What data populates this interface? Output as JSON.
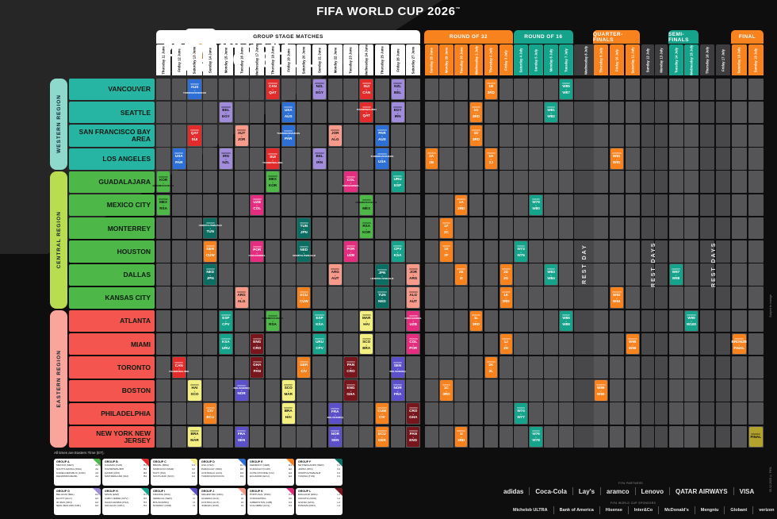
{
  "title": "FIFA WORLD CUP 2026",
  "logo": {
    "numeral": "26",
    "badge_text": "FIFA",
    "line1": "MATCH",
    "line2": "SCHEDULE"
  },
  "stage_colors": {
    "orange": "#f8821e",
    "teal": "#16a38b",
    "white": "#ffffff"
  },
  "stages": {
    "group": {
      "label": "GROUP STAGE MATCHES",
      "bg": "#ffffff",
      "fg": "#111111"
    },
    "r32": {
      "label": "ROUND OF 32",
      "bg": "#f8821e",
      "fg": "#ffffff"
    },
    "r16": {
      "label": "ROUND OF 16",
      "bg": "#16a38b",
      "fg": "#ffffff"
    },
    "qf": {
      "label": "QUARTER-FINALS",
      "bg": "#f8821e",
      "fg": "#ffffff"
    },
    "sf": {
      "label": "SEMI-FINALS",
      "bg": "#16a38b",
      "fg": "#ffffff"
    },
    "final": {
      "label": "FINAL",
      "bg": "#f8821e",
      "fg": "#ffffff"
    },
    "rest": {
      "label": "",
      "bg": "#3d3d3f",
      "fg": "#ffffff"
    }
  },
  "rest_labels": {
    "single": "REST DAY",
    "multi": "REST DAYS"
  },
  "columns": [
    {
      "day": "Thursday",
      "date": "11 June",
      "stage": "group"
    },
    {
      "day": "Friday",
      "date": "12 June",
      "stage": "group"
    },
    {
      "day": "Saturday",
      "date": "13 June",
      "stage": "group"
    },
    {
      "day": "Sunday",
      "date": "14 June",
      "stage": "group"
    },
    {
      "day": "Monday",
      "date": "15 June",
      "stage": "group"
    },
    {
      "day": "Tuesday",
      "date": "16 June",
      "stage": "group"
    },
    {
      "day": "Wednesday",
      "date": "17 June",
      "stage": "group"
    },
    {
      "day": "Thursday",
      "date": "18 June",
      "stage": "group"
    },
    {
      "day": "Friday",
      "date": "19 June",
      "stage": "group"
    },
    {
      "day": "Saturday",
      "date": "20 June",
      "stage": "group"
    },
    {
      "day": "Sunday",
      "date": "21 June",
      "stage": "group"
    },
    {
      "day": "Monday",
      "date": "22 June",
      "stage": "group"
    },
    {
      "day": "Tuesday",
      "date": "23 June",
      "stage": "group"
    },
    {
      "day": "Wednesday",
      "date": "24 June",
      "stage": "group"
    },
    {
      "day": "Thursday",
      "date": "25 June",
      "stage": "group"
    },
    {
      "day": "Friday",
      "date": "26 June",
      "stage": "group"
    },
    {
      "day": "Saturday",
      "date": "27 June",
      "stage": "group"
    },
    {
      "day": "Sunday",
      "date": "28 June",
      "stage": "r32"
    },
    {
      "day": "Monday",
      "date": "29 June",
      "stage": "r32"
    },
    {
      "day": "Tuesday",
      "date": "30 June",
      "stage": "r32"
    },
    {
      "day": "Wednesday",
      "date": "1 July",
      "stage": "r32"
    },
    {
      "day": "Thursday",
      "date": "2 July",
      "stage": "r32"
    },
    {
      "day": "Friday",
      "date": "3 July",
      "stage": "r32"
    },
    {
      "day": "Saturday",
      "date": "4 July",
      "stage": "r16"
    },
    {
      "day": "Sunday",
      "date": "5 July",
      "stage": "r16"
    },
    {
      "day": "Monday",
      "date": "6 July",
      "stage": "r16"
    },
    {
      "day": "Tuesday",
      "date": "7 July",
      "stage": "r16"
    },
    {
      "day": "Wednesday",
      "date": "8 July",
      "stage": "rest"
    },
    {
      "day": "Thursday",
      "date": "9 July",
      "stage": "qf"
    },
    {
      "day": "Friday",
      "date": "10 July",
      "stage": "qf"
    },
    {
      "day": "Saturday",
      "date": "11 July",
      "stage": "qf"
    },
    {
      "day": "Sunday",
      "date": "12 July",
      "stage": "rest"
    },
    {
      "day": "Monday",
      "date": "13 July",
      "stage": "rest"
    },
    {
      "day": "Tuesday",
      "date": "14 July",
      "stage": "sf"
    },
    {
      "day": "Wednesday",
      "date": "15 July",
      "stage": "sf"
    },
    {
      "day": "Thursday",
      "date": "16 July",
      "stage": "rest"
    },
    {
      "day": "Friday",
      "date": "17 July",
      "stage": "rest"
    },
    {
      "day": "Saturday",
      "date": "18 July",
      "stage": "final"
    },
    {
      "day": "Sunday",
      "date": "19 July",
      "stage": "final"
    }
  ],
  "regions": [
    {
      "name": "WESTERN REGION",
      "bar_color": "#8fd8cc",
      "city_color": "#25b5a2",
      "rows": [
        0,
        3
      ]
    },
    {
      "name": "CENTRAL REGION",
      "bar_color": "#b9dd51",
      "city_color": "#4db848",
      "rows": [
        4,
        9
      ]
    },
    {
      "name": "EASTERN REGION",
      "bar_color": "#f9a59c",
      "city_color": "#f4554f",
      "rows": [
        10,
        15
      ]
    }
  ],
  "cities": [
    "VANCOUVER",
    "SEATTLE",
    "SAN FRANCISCO BAY AREA",
    "LOS ANGELES",
    "GUADALAJARA",
    "MEXICO CITY",
    "MONTERREY",
    "HOUSTON",
    "DALLAS",
    "KANSAS CITY",
    "ATLANTA",
    "MIAMI",
    "TORONTO",
    "BOSTON",
    "PHILADELPHIA",
    "NEW YORK NEW JERSEY"
  ],
  "group_colors": {
    "A": "#4db848",
    "B": "#e22b2b",
    "C": "#f3ef83",
    "D": "#2e6fd6",
    "E": "#f5821f",
    "F": "#0c6e63",
    "G": "#a08cdb",
    "H": "#16a38b",
    "I": "#5b50c9",
    "J": "#f79a8a",
    "K": "#e52d7f",
    "L": "#77161c",
    "KO": "#f8821e",
    "KT": "#16a38b",
    "FN": "#b3a22c"
  },
  "dark_text_keys": [
    "A",
    "C",
    "G",
    "J",
    "FN"
  ],
  "chart_data": {
    "type": "table",
    "description": "FIFA World Cup 2026 match schedule grid: rows = host cities, columns = dates 11 June - 19 July 2026; each entry = [rowIndex, colIndex, team1, team2, colorKey]",
    "matches": [
      [
        0,
        2,
        "AUS",
        "TUR/ROU/SVK/KOS",
        "D"
      ],
      [
        0,
        7,
        "CAN",
        "QAT",
        "B"
      ],
      [
        0,
        10,
        "NZL",
        "EGY",
        "G"
      ],
      [
        0,
        13,
        "SUI",
        "CAN",
        "B"
      ],
      [
        0,
        15,
        "NZL",
        "BEL",
        "G"
      ],
      [
        1,
        4,
        "BEL",
        "EGY",
        "G"
      ],
      [
        1,
        8,
        "USA",
        "AUS",
        "D"
      ],
      [
        1,
        13,
        "ITA/NIR/WAL/BIH",
        "QAT",
        "B"
      ],
      [
        1,
        15,
        "EGY",
        "IRN",
        "G"
      ],
      [
        2,
        2,
        "QAT",
        "SUI",
        "B"
      ],
      [
        2,
        5,
        "AUT",
        "JOR",
        "J"
      ],
      [
        2,
        8,
        "TUR/ROU/SVK/KOS",
        "PAR",
        "D"
      ],
      [
        2,
        11,
        "JOR",
        "ALG",
        "J"
      ],
      [
        2,
        14,
        "PAR",
        "AUS",
        "D"
      ],
      [
        3,
        1,
        "USA",
        "PAR",
        "D"
      ],
      [
        3,
        4,
        "IRN",
        "NZL",
        "G"
      ],
      [
        3,
        7,
        "SUI",
        "ITA/NIR/WAL/BIH",
        "B"
      ],
      [
        3,
        10,
        "BEL",
        "IRN",
        "G"
      ],
      [
        3,
        14,
        "TUR/ROU/SVK/KOS",
        "USA",
        "D"
      ],
      [
        4,
        0,
        "KOR",
        "DEN/MKD/CZE/IRL",
        "A"
      ],
      [
        4,
        7,
        "MEX",
        "KOR",
        "A"
      ],
      [
        4,
        12,
        "COL",
        "COD/JAM/NCL",
        "K"
      ],
      [
        4,
        15,
        "URU",
        "ESP",
        "H"
      ],
      [
        5,
        0,
        "MEX",
        "RSA",
        "A"
      ],
      [
        5,
        6,
        "UZB",
        "COL",
        "K"
      ],
      [
        5,
        13,
        "DEN/MKD/CZE/IRL",
        "MEX",
        "A"
      ],
      [
        6,
        3,
        "UKR/POL/SWE/ALB",
        "TUN",
        "F"
      ],
      [
        6,
        9,
        "TUN",
        "JPN",
        "F"
      ],
      [
        6,
        13,
        "RSA",
        "KOR",
        "A"
      ],
      [
        7,
        3,
        "GER",
        "CUW",
        "E"
      ],
      [
        7,
        6,
        "POR",
        "COD/JAM/NCL",
        "K"
      ],
      [
        7,
        9,
        "NED",
        "UKR/POL/SWE/ALB",
        "F"
      ],
      [
        7,
        12,
        "POR",
        "UZB",
        "K"
      ],
      [
        7,
        15,
        "CPV",
        "KSA",
        "H"
      ],
      [
        8,
        3,
        "NED",
        "JPN",
        "F"
      ],
      [
        8,
        11,
        "ARG",
        "AUT",
        "J"
      ],
      [
        8,
        14,
        "JPN",
        "UKR/POL/SWE/ALB",
        "F"
      ],
      [
        8,
        16,
        "JOR",
        "ARG",
        "J"
      ],
      [
        9,
        5,
        "ARG",
        "ALG",
        "J"
      ],
      [
        9,
        9,
        "ECU",
        "CUW",
        "E"
      ],
      [
        9,
        14,
        "TUN",
        "NED",
        "F"
      ],
      [
        9,
        16,
        "ALG",
        "AUT",
        "J"
      ],
      [
        10,
        4,
        "ESP",
        "CPV",
        "H"
      ],
      [
        10,
        7,
        "DEN/MKD/CZE/IRL",
        "RSA",
        "A"
      ],
      [
        10,
        10,
        "ESP",
        "KSA",
        "H"
      ],
      [
        10,
        13,
        "MAR",
        "HAI",
        "C"
      ],
      [
        10,
        16,
        "COD/JAM/NCL",
        "UZB",
        "K"
      ],
      [
        11,
        4,
        "KSA",
        "URU",
        "H"
      ],
      [
        11,
        6,
        "ENG",
        "CRO",
        "L"
      ],
      [
        11,
        10,
        "URU",
        "CPV",
        "H"
      ],
      [
        11,
        13,
        "SCO",
        "BRA",
        "C"
      ],
      [
        11,
        16,
        "COL",
        "POR",
        "K"
      ],
      [
        12,
        1,
        "CAN",
        "ITA/NIR/WAL/BIH",
        "B"
      ],
      [
        12,
        6,
        "GHA",
        "PAN",
        "L"
      ],
      [
        12,
        9,
        "GER",
        "CIV",
        "E"
      ],
      [
        12,
        12,
        "PAN",
        "CRO",
        "L"
      ],
      [
        12,
        15,
        "SEN",
        "BOL/SUR/IRQ",
        "I"
      ],
      [
        13,
        2,
        "HAI",
        "SCO",
        "C"
      ],
      [
        13,
        5,
        "BOL/SUR/IRQ",
        "NOR",
        "I"
      ],
      [
        13,
        8,
        "SCO",
        "MAR",
        "C"
      ],
      [
        13,
        12,
        "ENG",
        "GHA",
        "L"
      ],
      [
        13,
        15,
        "NOR",
        "FRA",
        "I"
      ],
      [
        14,
        3,
        "CIV",
        "ECU",
        "E"
      ],
      [
        14,
        8,
        "BRA",
        "HAI",
        "C"
      ],
      [
        14,
        11,
        "FRA",
        "BOL/SUR/IRQ",
        "I"
      ],
      [
        14,
        14,
        "CUW",
        "CIV",
        "E"
      ],
      [
        14,
        16,
        "CRO",
        "GHA",
        "L"
      ],
      [
        15,
        2,
        "BRA",
        "MAR",
        "C"
      ],
      [
        15,
        5,
        "FRA",
        "SEN",
        "I"
      ],
      [
        15,
        11,
        "NOR",
        "SEN",
        "I"
      ],
      [
        15,
        14,
        "ECU",
        "GER",
        "E"
      ],
      [
        15,
        16,
        "PAN",
        "ENG",
        "L"
      ],
      [
        3,
        17,
        "2A",
        "2B",
        "KO"
      ],
      [
        6,
        18,
        "1F",
        "2C",
        "KO"
      ],
      [
        7,
        18,
        "1E",
        "2F",
        "KO"
      ],
      [
        13,
        18,
        "1C",
        "3RD",
        "KO"
      ],
      [
        5,
        19,
        "1A",
        "3RD",
        "KO"
      ],
      [
        8,
        19,
        "2E",
        "2I",
        "KO"
      ],
      [
        15,
        19,
        "1I",
        "3RD",
        "KO"
      ],
      [
        1,
        20,
        "1G",
        "3RD",
        "KO"
      ],
      [
        2,
        20,
        "1D",
        "3RD",
        "KO"
      ],
      [
        10,
        20,
        "1L",
        "3RD",
        "KO"
      ],
      [
        0,
        21,
        "1B",
        "3RD",
        "KO"
      ],
      [
        3,
        21,
        "1H",
        "2J",
        "KO"
      ],
      [
        12,
        21,
        "2K",
        "2L",
        "KO"
      ],
      [
        9,
        22,
        "1K",
        "3RD",
        "KO"
      ],
      [
        11,
        22,
        "1J",
        "2H",
        "KO"
      ],
      [
        8,
        22,
        "2D",
        "2G",
        "KO"
      ],
      [
        7,
        23,
        "W73",
        "W75",
        "KT"
      ],
      [
        14,
        23,
        "W74",
        "W77",
        "KT"
      ],
      [
        5,
        24,
        "W79",
        "W80",
        "KT"
      ],
      [
        15,
        24,
        "W76",
        "W78",
        "KT"
      ],
      [
        1,
        25,
        "W81",
        "W82",
        "KT"
      ],
      [
        8,
        25,
        "W83",
        "W84",
        "KT"
      ],
      [
        0,
        26,
        "W85",
        "W87",
        "KT"
      ],
      [
        10,
        26,
        "W86",
        "W88",
        "KT"
      ],
      [
        13,
        28,
        "W89",
        "W90",
        "KO"
      ],
      [
        3,
        29,
        "W91",
        "W92",
        "KO"
      ],
      [
        9,
        29,
        "W93",
        "W94",
        "KO"
      ],
      [
        11,
        30,
        "W95",
        "W96",
        "KO"
      ],
      [
        8,
        33,
        "W97",
        "W98",
        "KT"
      ],
      [
        10,
        34,
        "W99",
        "W100",
        "KT"
      ],
      [
        11,
        37,
        "BRONZE",
        "FINAL",
        "KO"
      ],
      [
        15,
        38,
        "FINAL",
        "",
        "FN"
      ]
    ]
  },
  "legend": {
    "groups": [
      {
        "letter": "A",
        "title": "GROUP A",
        "teams": [
          [
            "MEXICO (MEX)",
            "A1"
          ],
          [
            "SOUTH AFRICA (RSA)",
            "A2"
          ],
          [
            "KOREA REPUBLIC (KOR)",
            "A3"
          ],
          [
            "DEN/MKD/CZE/IRL",
            "A4"
          ]
        ]
      },
      {
        "letter": "B",
        "title": "GROUP B",
        "teams": [
          [
            "CANADA (CAN)",
            "B1"
          ],
          [
            "ITA/NIR/WAL/BIH",
            "B2"
          ],
          [
            "QATAR (QAT)",
            "B3"
          ],
          [
            "SWITZERLAND (SUI)",
            "B4"
          ]
        ]
      },
      {
        "letter": "C",
        "title": "GROUP C",
        "teams": [
          [
            "BRAZIL (BRA)",
            "C1"
          ],
          [
            "MOROCCO (MAR)",
            "C2"
          ],
          [
            "HAITI (HAI)",
            "C3"
          ],
          [
            "SCOTLAND (SCO)",
            "C4"
          ]
        ]
      },
      {
        "letter": "D",
        "title": "GROUP D",
        "teams": [
          [
            "USA (USA)",
            "D1"
          ],
          [
            "PARAGUAY (PAR)",
            "D2"
          ],
          [
            "AUSTRALIA (AUS)",
            "D3"
          ],
          [
            "TUR/ROU/SVK/KOS",
            "D4"
          ]
        ]
      },
      {
        "letter": "E",
        "title": "GROUP E",
        "teams": [
          [
            "GERMANY (GER)",
            "E1"
          ],
          [
            "CURACAO (CUW)",
            "E2"
          ],
          [
            "COTE D'IVOIRE (CIV)",
            "E3"
          ],
          [
            "ECUADOR (ECU)",
            "E4"
          ]
        ]
      },
      {
        "letter": "F",
        "title": "GROUP F",
        "teams": [
          [
            "NETHERLANDS (NED)",
            "F1"
          ],
          [
            "JAPAN (JPN)",
            "F2"
          ],
          [
            "UKR/POL/SWE/ALB",
            "F3"
          ],
          [
            "TUNISIA (TUN)",
            "F4"
          ]
        ]
      },
      {
        "letter": "G",
        "title": "GROUP G",
        "teams": [
          [
            "BELGIUM (BEL)",
            "G1"
          ],
          [
            "EGYPT (EGY)",
            "G2"
          ],
          [
            "IR IRAN (IRN)",
            "G3"
          ],
          [
            "NEW ZEALAND (NZL)",
            "G4"
          ]
        ]
      },
      {
        "letter": "H",
        "title": "GROUP H",
        "teams": [
          [
            "SPAIN (ESP)",
            "H1"
          ],
          [
            "CABO VERDE (CPV)",
            "H2"
          ],
          [
            "SAUDI ARABIA (KSA)",
            "H3"
          ],
          [
            "URUGUAY (URU)",
            "H4"
          ]
        ]
      },
      {
        "letter": "I",
        "title": "GROUP I",
        "teams": [
          [
            "FRANCE (FRA)",
            "I1"
          ],
          [
            "SENEGAL (SEN)",
            "I2"
          ],
          [
            "BOL/SUR/IRQ",
            "I3"
          ],
          [
            "NORWAY (NOR)",
            "I4"
          ]
        ]
      },
      {
        "letter": "J",
        "title": "GROUP J",
        "teams": [
          [
            "ARGENTINA (ARG)",
            "J1"
          ],
          [
            "ALGERIA (ALG)",
            "J2"
          ],
          [
            "AUSTRIA (AUT)",
            "J3"
          ],
          [
            "JORDAN (JOR)",
            "J4"
          ]
        ]
      },
      {
        "letter": "K",
        "title": "GROUP K",
        "teams": [
          [
            "PORTUGAL (POR)",
            "K1"
          ],
          [
            "COD/JAM/NCL",
            "K2"
          ],
          [
            "UZBEKISTAN (UZB)",
            "K3"
          ],
          [
            "COLOMBIA (COL)",
            "K4"
          ]
        ]
      },
      {
        "letter": "L",
        "title": "GROUP L",
        "teams": [
          [
            "ENGLAND (ENG)",
            "L1"
          ],
          [
            "CROATIA (CRO)",
            "L2"
          ],
          [
            "GHANA (GHA)",
            "L3"
          ],
          [
            "PANAMA (PAN)",
            "L4"
          ]
        ]
      }
    ]
  },
  "footer": {
    "timezone_note": "All times are Eastern Time (ET).",
    "partners_label": "FIFA PARTNERS",
    "sponsors_label": "FIFA WORLD CUP SPONSORS",
    "sponsors_row1": [
      "adidas",
      "Coca-Cola",
      "Lay's",
      "aramco",
      "Lenovo",
      "QATAR AIRWAYS",
      "VISA"
    ],
    "sponsors_row2": [
      "Michelob ULTRA",
      "Bank of America",
      "Hisense",
      "Inter&Co",
      "McDonald's",
      "Mengniu",
      "Globant",
      "verizon"
    ]
  },
  "side_notes": [
    "Subject to change",
    "05.12.2025 © FIFA"
  ]
}
